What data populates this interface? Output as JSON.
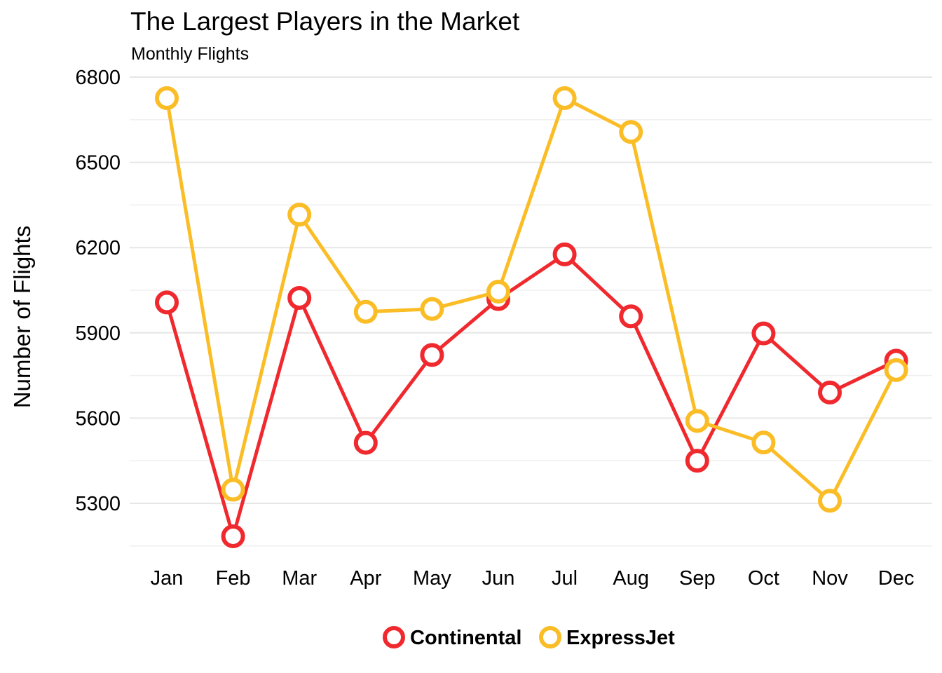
{
  "chart_data": {
    "type": "line",
    "title": "The Largest Players in the Market",
    "subtitle": "Monthly Flights",
    "xlabel": "",
    "ylabel": "Number of Flights",
    "categories": [
      "Jan",
      "Feb",
      "Mar",
      "Apr",
      "May",
      "Jun",
      "Jul",
      "Aug",
      "Sep",
      "Oct",
      "Nov",
      "Dec"
    ],
    "yticks": [
      5300,
      5600,
      5900,
      6200,
      6500,
      6800
    ],
    "ylim": [
      5150,
      6850
    ],
    "grid": true,
    "legend_position": "bottom",
    "series": [
      {
        "name": "Continental",
        "color": "#F0292E",
        "values": [
          6007,
          5184,
          6023,
          5513,
          5822,
          6019,
          6176,
          5958,
          5450,
          5898,
          5690,
          5802
        ]
      },
      {
        "name": "ExpressJet",
        "color": "#FBBD26",
        "values": [
          6726,
          5348,
          6316,
          5974,
          5984,
          6045,
          6726,
          6607,
          5590,
          5514,
          5309,
          5769
        ]
      }
    ]
  }
}
